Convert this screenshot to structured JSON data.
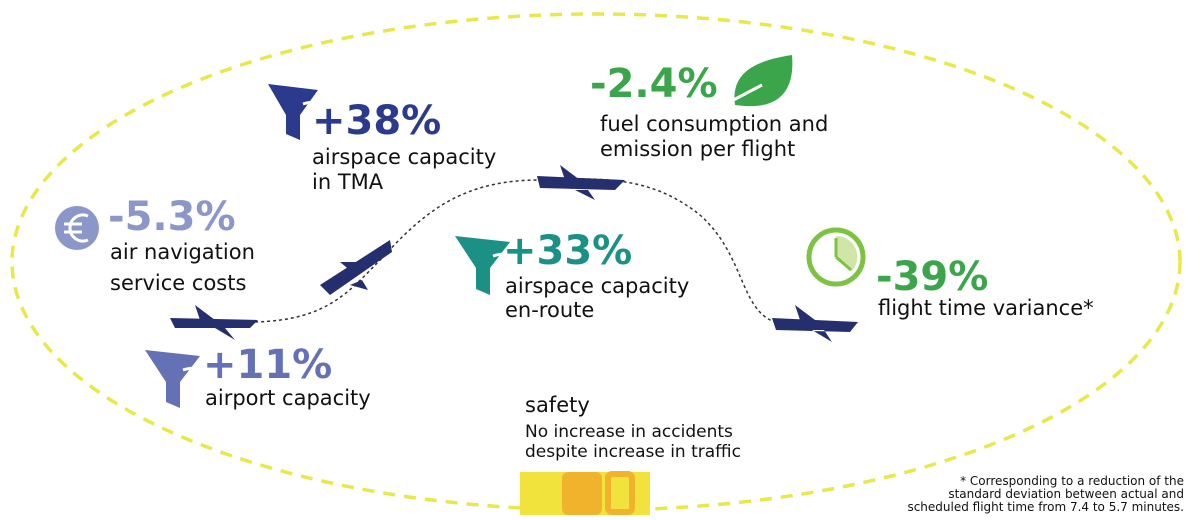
{
  "items": [
    {
      "value": "+38%",
      "lines": [
        "airspace capacity",
        "in TMA"
      ]
    },
    {
      "value": "-2.4%",
      "lines": [
        "fuel consumption and",
        "emission per flight"
      ]
    },
    {
      "value": "-5.3%",
      "lines": [
        "air navigation",
        "service costs"
      ]
    },
    {
      "value": "+33%",
      "lines": [
        "airspace capacity",
        "en-route"
      ]
    },
    {
      "value": "-39%",
      "lines": [
        "flight time variance*"
      ]
    },
    {
      "value": "+11%",
      "lines": [
        "airport capacity"
      ]
    }
  ],
  "safety": {
    "title": "safety",
    "lines": [
      "No increase in accidents",
      "despite increase in traffic"
    ]
  },
  "footnote": [
    "* Corresponding to a reduction of the",
    "standard deviation between actual and",
    "scheduled flight time from 7.4 to 5.7 minutes."
  ]
}
